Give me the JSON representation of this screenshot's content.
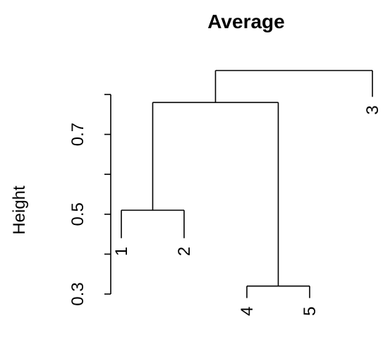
{
  "chart_data": {
    "type": "dendrogram",
    "title": "Average",
    "ylabel": "Height",
    "ylim": [
      0.3,
      0.85
    ],
    "y_ticks": [
      0.3,
      0.4,
      0.5,
      0.6,
      0.7,
      0.8
    ],
    "y_tick_labels": [
      {
        "value": 0.3,
        "label": "0.3"
      },
      {
        "value": 0.5,
        "label": "0.5"
      },
      {
        "value": 0.7,
        "label": "0.7"
      }
    ],
    "leaves": [
      {
        "label": "1",
        "height": 0.44
      },
      {
        "label": "2",
        "height": 0.44
      },
      {
        "label": "4",
        "height": 0.29
      },
      {
        "label": "5",
        "height": 0.29
      },
      {
        "label": "3",
        "height": 0.794
      }
    ],
    "merges": [
      {
        "left": "4",
        "right": "5",
        "height": 0.32
      },
      {
        "left": "1",
        "right": "2",
        "height": 0.51
      },
      {
        "left": "{1,2}",
        "right": "{4,5}",
        "height": 0.78
      },
      {
        "left": "{1,2,4,5}",
        "right": "3",
        "height": 0.86
      }
    ]
  }
}
